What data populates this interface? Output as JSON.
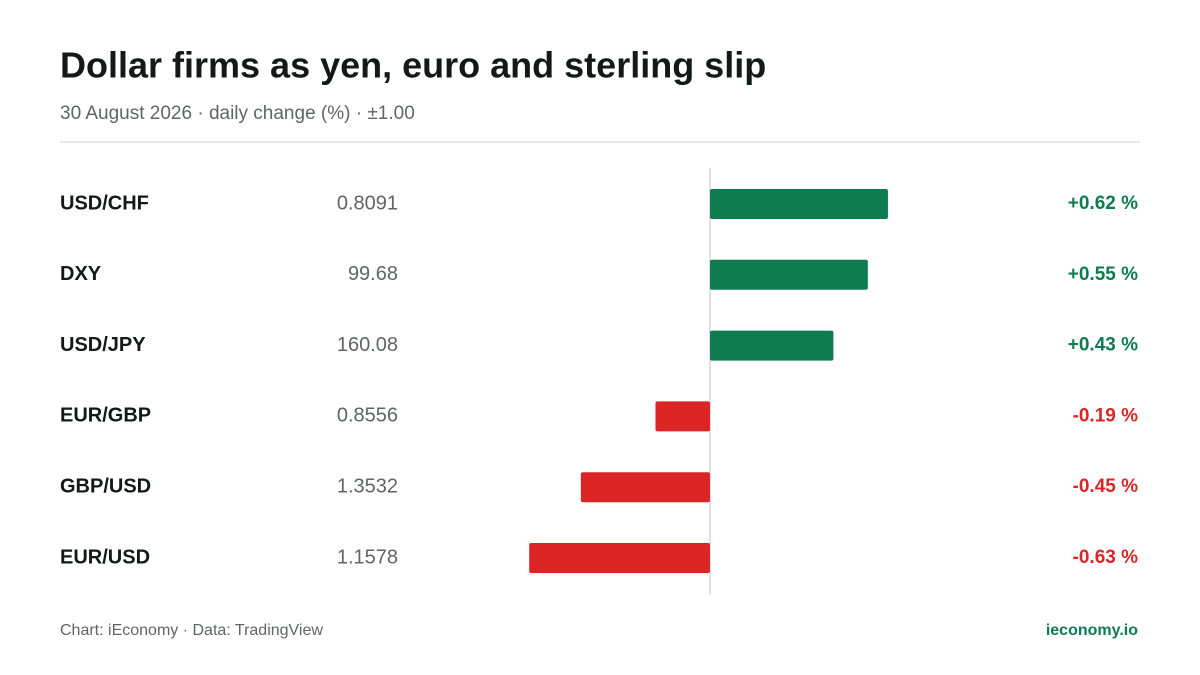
{
  "chart_data": {
    "type": "bar",
    "orientation": "horizontal",
    "title": "Dollar firms as yen, euro and sterling slip",
    "subtitle": "30 August 2026 · daily change (%) · ±1.00",
    "categories": [
      "USD/CHF",
      "DXY",
      "USD/JPY",
      "EUR/GBP",
      "GBP/USD",
      "EUR/USD"
    ],
    "prices": [
      "0.8091",
      "99.68",
      "160.08",
      "0.8556",
      "1.3532",
      "1.1578"
    ],
    "values": [
      0.62,
      0.55,
      0.43,
      -0.19,
      -0.45,
      -0.63
    ],
    "value_labels": [
      "+0.62 %",
      "+0.55 %",
      "+0.43 %",
      "-0.19 %",
      "-0.45 %",
      "-0.63 %"
    ],
    "xlim": [
      -1,
      1
    ],
    "colors": {
      "positive": "#0e7c4f",
      "negative": "#dc2626"
    },
    "source": "Chart: iEconomy · Data: TradingView",
    "brand": "ieconomy.io"
  }
}
